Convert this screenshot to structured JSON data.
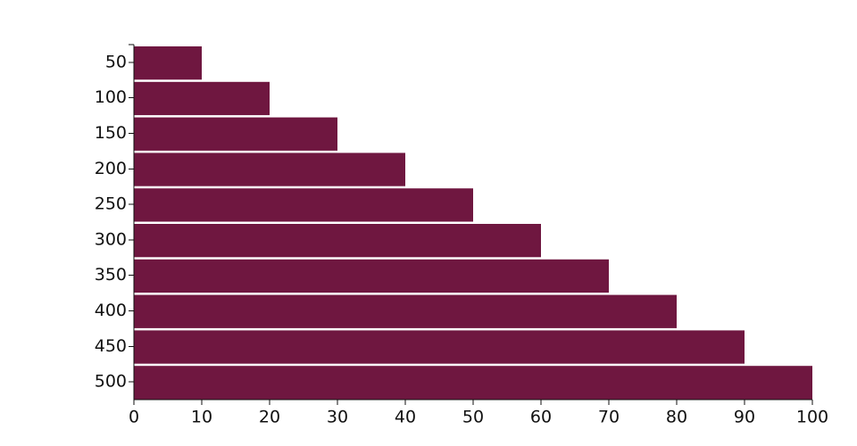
{
  "chart_data": {
    "type": "barh",
    "categories": [
      "50",
      "100",
      "150",
      "200",
      "250",
      "300",
      "350",
      "400",
      "450",
      "500"
    ],
    "values": [
      10,
      20,
      30,
      40,
      50,
      60,
      70,
      80,
      90,
      100
    ],
    "color": "#6f1740",
    "xlim": [
      0,
      100
    ],
    "xticks": [
      0,
      10,
      20,
      30,
      40,
      50,
      60,
      70,
      80,
      90,
      100
    ]
  }
}
